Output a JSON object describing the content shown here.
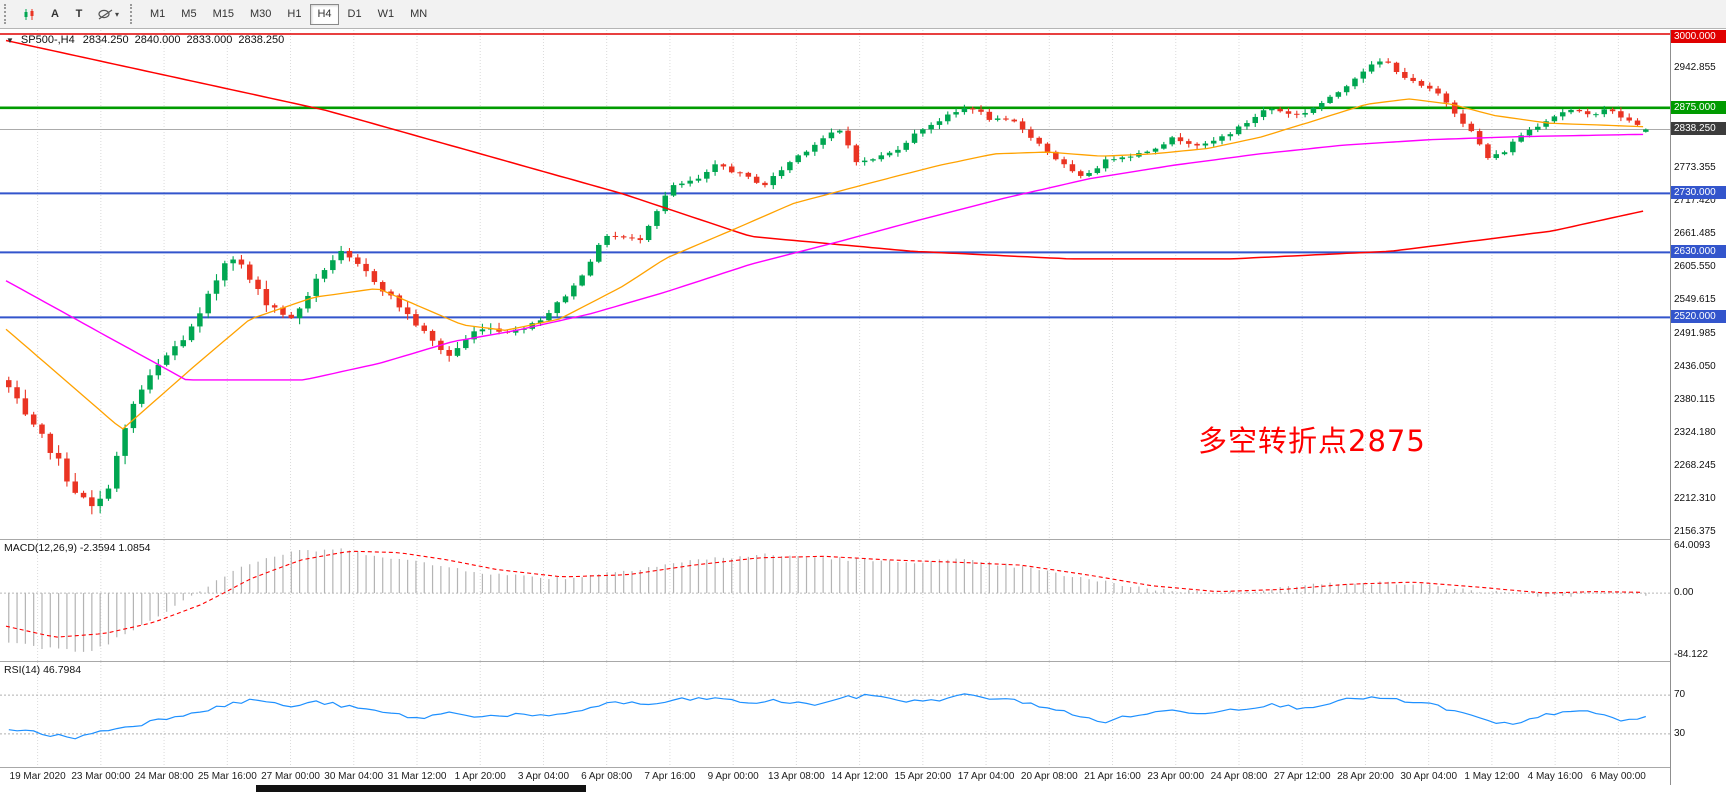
{
  "toolbar": {
    "buttons": [
      {
        "name": "new-chart-button",
        "label": ""
      },
      {
        "name": "cursor-button",
        "label": "A"
      },
      {
        "name": "text-button",
        "label": "T"
      },
      {
        "name": "shapes-button",
        "label": ""
      }
    ],
    "timeframes": [
      "M1",
      "M5",
      "M15",
      "M30",
      "H1",
      "H4",
      "D1",
      "W1",
      "MN"
    ],
    "active_timeframe": "H4"
  },
  "chart": {
    "header": {
      "symbol": "SP500-,H4",
      "open": "2834.250",
      "high": "2840.000",
      "low": "2833.000",
      "close": "2838.250"
    },
    "annotation": {
      "text": "多空转折点2875",
      "color": "#FF0000"
    },
    "price_axis": {
      "top_price": 3000.0,
      "bottom_price": 2156.375,
      "labels": [
        {
          "text": "2942.855",
          "price": 2942.855
        },
        {
          "text": "2773.355",
          "price": 2773.355
        },
        {
          "text": "2717.420",
          "price": 2717.42
        },
        {
          "text": "2661.485",
          "price": 2661.485
        },
        {
          "text": "2605.550",
          "price": 2605.55
        },
        {
          "text": "2549.615",
          "price": 2549.615
        },
        {
          "text": "2491.985",
          "price": 2491.985
        },
        {
          "text": "2436.050",
          "price": 2436.05
        },
        {
          "text": "2380.115",
          "price": 2380.115
        },
        {
          "text": "2324.180",
          "price": 2324.18
        },
        {
          "text": "2268.245",
          "price": 2268.245
        },
        {
          "text": "2212.310",
          "price": 2212.31
        },
        {
          "text": "2156.375",
          "price": 2156.375
        }
      ],
      "tags": [
        {
          "text": "3000.000",
          "price": 3000.0,
          "bg": "#E00000"
        },
        {
          "text": "2875.000",
          "price": 2875.0,
          "bg": "#009B00"
        },
        {
          "text": "2838.250",
          "price": 2838.25,
          "bg": "#3C3C3C"
        },
        {
          "text": "2730.000",
          "price": 2730.0,
          "bg": "#3355CC"
        },
        {
          "text": "2630.000",
          "price": 2630.0,
          "bg": "#3355CC"
        },
        {
          "text": "2520.000",
          "price": 2520.0,
          "bg": "#3355CC"
        }
      ]
    },
    "time_axis": [
      "19 Mar 2020",
      "23 Mar 00:00",
      "24 Mar 08:00",
      "25 Mar 16:00",
      "27 Mar 00:00",
      "30 Mar 04:00",
      "31 Mar 12:00",
      "1 Apr 20:00",
      "3 Apr 04:00",
      "6 Apr 08:00",
      "7 Apr 16:00",
      "9 Apr 00:00",
      "13 Apr 08:00",
      "14 Apr 12:00",
      "15 Apr 20:00",
      "17 Apr 04:00",
      "20 Apr 08:00",
      "21 Apr 16:00",
      "23 Apr 00:00",
      "24 Apr 08:00",
      "27 Apr 12:00",
      "28 Apr 20:00",
      "30 Apr 04:00",
      "1 May 12:00",
      "4 May 16:00",
      "6 May 00:00"
    ],
    "colors": {
      "up": "#00A651",
      "down": "#EA3423",
      "ma_fast": "#FFA200",
      "ma_mid": "#FF00FF",
      "ma_slow": "#FF0000",
      "grid": "#DADADA",
      "current_price_line": "#ABABAB"
    }
  },
  "chart_data": {
    "type": "candlestick",
    "symbol": "SP500-",
    "timeframe": "H4",
    "bars": 198,
    "current_bar": {
      "open": 2834.25,
      "high": 2840.0,
      "low": 2833.0,
      "close": 2838.25
    },
    "horizontal_lines": [
      {
        "name": "resistance-line-3000",
        "price": 3000.0,
        "color": "#E00000",
        "w": 1.4
      },
      {
        "name": "pivot-line-2875",
        "price": 2875.0,
        "color": "#009B00",
        "w": 2.6
      },
      {
        "name": "support-line-2730",
        "price": 2730.0,
        "color": "#3355CC",
        "w": 2
      },
      {
        "name": "support-line-2630",
        "price": 2630.0,
        "color": "#3355CC",
        "w": 2
      },
      {
        "name": "support-line-2520",
        "price": 2520.0,
        "color": "#3355CC",
        "w": 2
      }
    ],
    "close_anchors": [
      [
        0,
        2400
      ],
      [
        0.012,
        2340
      ],
      [
        0.025,
        2300
      ],
      [
        0.0385,
        2235
      ],
      [
        0.05,
        2195
      ],
      [
        0.058,
        2212
      ],
      [
        0.077,
        2380
      ],
      [
        0.095,
        2450
      ],
      [
        0.115,
        2510
      ],
      [
        0.135,
        2635
      ],
      [
        0.154,
        2555
      ],
      [
        0.173,
        2515
      ],
      [
        0.192,
        2600
      ],
      [
        0.202,
        2630
      ],
      [
        0.221,
        2590
      ],
      [
        0.24,
        2535
      ],
      [
        0.26,
        2475
      ],
      [
        0.269,
        2455
      ],
      [
        0.288,
        2505
      ],
      [
        0.308,
        2495
      ],
      [
        0.327,
        2520
      ],
      [
        0.346,
        2575
      ],
      [
        0.365,
        2660
      ],
      [
        0.385,
        2650
      ],
      [
        0.404,
        2740
      ],
      [
        0.423,
        2755
      ],
      [
        0.433,
        2780
      ],
      [
        0.448,
        2760
      ],
      [
        0.462,
        2745
      ],
      [
        0.48,
        2790
      ],
      [
        0.5,
        2828
      ],
      [
        0.508,
        2835
      ],
      [
        0.519,
        2780
      ],
      [
        0.54,
        2800
      ],
      [
        0.558,
        2840
      ],
      [
        0.577,
        2865
      ],
      [
        0.587,
        2878
      ],
      [
        0.6,
        2855
      ],
      [
        0.615,
        2850
      ],
      [
        0.635,
        2800
      ],
      [
        0.654,
        2755
      ],
      [
        0.673,
        2790
      ],
      [
        0.692,
        2798
      ],
      [
        0.712,
        2824
      ],
      [
        0.73,
        2810
      ],
      [
        0.75,
        2838
      ],
      [
        0.769,
        2875
      ],
      [
        0.788,
        2862
      ],
      [
        0.808,
        2892
      ],
      [
        0.827,
        2938
      ],
      [
        0.84,
        2956
      ],
      [
        0.856,
        2920
      ],
      [
        0.875,
        2896
      ],
      [
        0.894,
        2832
      ],
      [
        0.904,
        2788
      ],
      [
        0.913,
        2800
      ],
      [
        0.923,
        2828
      ],
      [
        0.94,
        2856
      ],
      [
        0.952,
        2872
      ],
      [
        0.965,
        2862
      ],
      [
        0.975,
        2874
      ],
      [
        0.99,
        2852
      ],
      [
        1,
        2838.25
      ]
    ],
    "ma_fast_anchors": [
      [
        0,
        2500
      ],
      [
        0.071,
        2330
      ],
      [
        0.117,
        2442
      ],
      [
        0.149,
        2517
      ],
      [
        0.188,
        2554
      ],
      [
        0.227,
        2569
      ],
      [
        0.279,
        2507
      ],
      [
        0.305,
        2498
      ],
      [
        0.338,
        2517
      ],
      [
        0.377,
        2573
      ],
      [
        0.403,
        2620
      ],
      [
        0.442,
        2666
      ],
      [
        0.481,
        2713
      ],
      [
        0.519,
        2741
      ],
      [
        0.545,
        2760
      ],
      [
        0.571,
        2778
      ],
      [
        0.604,
        2797
      ],
      [
        0.636,
        2800
      ],
      [
        0.669,
        2793
      ],
      [
        0.701,
        2797
      ],
      [
        0.734,
        2806
      ],
      [
        0.766,
        2825
      ],
      [
        0.799,
        2853
      ],
      [
        0.831,
        2881
      ],
      [
        0.857,
        2890
      ],
      [
        0.883,
        2881
      ],
      [
        0.909,
        2862
      ],
      [
        0.942,
        2849
      ],
      [
        1,
        2843
      ]
    ],
    "ma_mid_anchors": [
      [
        0,
        2582
      ],
      [
        0.11,
        2414
      ],
      [
        0.182,
        2414
      ],
      [
        0.228,
        2442
      ],
      [
        0.273,
        2479
      ],
      [
        0.312,
        2498
      ],
      [
        0.357,
        2526
      ],
      [
        0.403,
        2563
      ],
      [
        0.455,
        2610
      ],
      [
        0.507,
        2647
      ],
      [
        0.558,
        2685
      ],
      [
        0.61,
        2722
      ],
      [
        0.662,
        2755
      ],
      [
        0.714,
        2778
      ],
      [
        0.766,
        2797
      ],
      [
        0.818,
        2812
      ],
      [
        0.87,
        2821
      ],
      [
        0.922,
        2826
      ],
      [
        1,
        2830
      ]
    ],
    "ma_slow_anchors": [
      [
        0,
        2989
      ],
      [
        0.195,
        2871
      ],
      [
        0.377,
        2729
      ],
      [
        0.455,
        2657
      ],
      [
        0.553,
        2632
      ],
      [
        0.65,
        2619
      ],
      [
        0.748,
        2619
      ],
      [
        0.846,
        2632
      ],
      [
        0.944,
        2666
      ],
      [
        1,
        2700
      ]
    ],
    "macd": {
      "label": "MACD(12,26,9)",
      "main_value": "-2.3594",
      "signal_value": "1.0854",
      "scale_max": 64.0093,
      "scale_min": -84.122,
      "main_anchors": [
        [
          0,
          -65
        ],
        [
          0.02,
          -75
        ],
        [
          0.05,
          -80
        ],
        [
          0.08,
          -45
        ],
        [
          0.11,
          -5
        ],
        [
          0.14,
          35
        ],
        [
          0.17,
          55
        ],
        [
          0.2,
          60
        ],
        [
          0.23,
          50
        ],
        [
          0.26,
          38
        ],
        [
          0.3,
          25
        ],
        [
          0.34,
          20
        ],
        [
          0.38,
          32
        ],
        [
          0.42,
          45
        ],
        [
          0.46,
          52
        ],
        [
          0.5,
          48
        ],
        [
          0.54,
          42
        ],
        [
          0.58,
          45
        ],
        [
          0.62,
          35
        ],
        [
          0.66,
          18
        ],
        [
          0.7,
          5
        ],
        [
          0.74,
          0
        ],
        [
          0.78,
          8
        ],
        [
          0.82,
          15
        ],
        [
          0.86,
          12
        ],
        [
          0.9,
          2
        ],
        [
          0.94,
          -4
        ],
        [
          0.97,
          -1
        ],
        [
          1,
          -2.36
        ]
      ],
      "signal_anchors": [
        [
          0,
          -45
        ],
        [
          0.03,
          -60
        ],
        [
          0.06,
          -55
        ],
        [
          0.09,
          -40
        ],
        [
          0.12,
          -15
        ],
        [
          0.15,
          20
        ],
        [
          0.18,
          45
        ],
        [
          0.21,
          57
        ],
        [
          0.24,
          55
        ],
        [
          0.27,
          45
        ],
        [
          0.3,
          32
        ],
        [
          0.34,
          22
        ],
        [
          0.38,
          25
        ],
        [
          0.42,
          38
        ],
        [
          0.46,
          48
        ],
        [
          0.5,
          50
        ],
        [
          0.54,
          45
        ],
        [
          0.58,
          42
        ],
        [
          0.62,
          38
        ],
        [
          0.66,
          25
        ],
        [
          0.7,
          10
        ],
        [
          0.74,
          2
        ],
        [
          0.78,
          5
        ],
        [
          0.82,
          12
        ],
        [
          0.86,
          15
        ],
        [
          0.9,
          8
        ],
        [
          0.94,
          0
        ],
        [
          0.97,
          2
        ],
        [
          1,
          1.09
        ]
      ]
    },
    "rsi": {
      "label": "RSI(14)",
      "value": "46.7984",
      "levels": [
        70,
        30
      ],
      "anchors": [
        [
          0,
          36
        ],
        [
          0.02,
          30
        ],
        [
          0.04,
          26
        ],
        [
          0.06,
          34
        ],
        [
          0.08,
          40
        ],
        [
          0.1,
          48
        ],
        [
          0.12,
          55
        ],
        [
          0.14,
          62
        ],
        [
          0.15,
          66
        ],
        [
          0.17,
          58
        ],
        [
          0.19,
          63
        ],
        [
          0.21,
          57
        ],
        [
          0.23,
          52
        ],
        [
          0.25,
          46
        ],
        [
          0.27,
          52
        ],
        [
          0.29,
          48
        ],
        [
          0.31,
          50
        ],
        [
          0.33,
          47
        ],
        [
          0.35,
          55
        ],
        [
          0.37,
          63
        ],
        [
          0.39,
          60
        ],
        [
          0.41,
          65
        ],
        [
          0.43,
          67
        ],
        [
          0.45,
          62
        ],
        [
          0.47,
          64
        ],
        [
          0.49,
          60
        ],
        [
          0.51,
          67
        ],
        [
          0.53,
          70
        ],
        [
          0.55,
          63
        ],
        [
          0.57,
          66
        ],
        [
          0.585,
          70
        ],
        [
          0.6,
          67
        ],
        [
          0.62,
          63
        ],
        [
          0.64,
          55
        ],
        [
          0.655,
          47
        ],
        [
          0.67,
          43
        ],
        [
          0.69,
          50
        ],
        [
          0.71,
          54
        ],
        [
          0.73,
          52
        ],
        [
          0.75,
          56
        ],
        [
          0.77,
          60
        ],
        [
          0.79,
          57
        ],
        [
          0.81,
          63
        ],
        [
          0.83,
          68
        ],
        [
          0.85,
          64
        ],
        [
          0.87,
          60
        ],
        [
          0.89,
          50
        ],
        [
          0.905,
          42
        ],
        [
          0.92,
          39
        ],
        [
          0.94,
          50
        ],
        [
          0.955,
          55
        ],
        [
          0.97,
          50
        ],
        [
          0.985,
          44
        ],
        [
          1,
          46.8
        ]
      ]
    }
  },
  "macd_panel": {
    "header": "MACD(12,26,9) -2.3594 1.0854",
    "axis_labels": [
      {
        "text": "64.0093",
        "value": 64.0093
      },
      {
        "text": "0.00",
        "value": 0
      },
      {
        "text": "-84.122",
        "value": -84.122
      }
    ]
  },
  "rsi_panel": {
    "header": "RSI(14) 46.7984",
    "axis_labels": [
      {
        "text": "70",
        "value": 70
      },
      {
        "text": "30",
        "value": 30
      }
    ]
  }
}
